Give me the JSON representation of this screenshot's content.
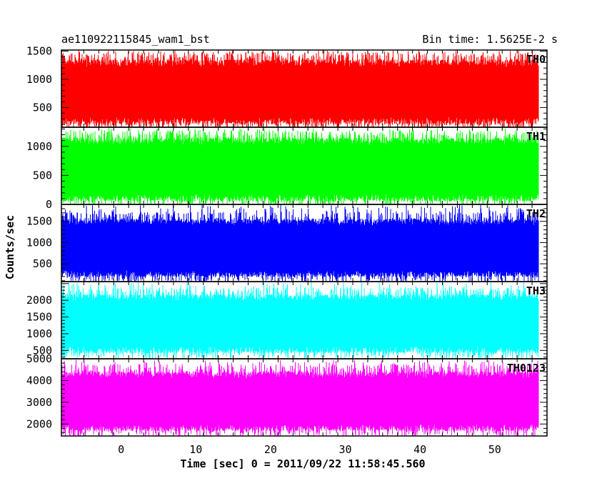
{
  "header": {
    "title": "ae110922115845_wam1_bst",
    "bin_time": "Bin time: 1.5625E-2 s"
  },
  "chart_data": {
    "type": "line",
    "title": "ae110922115845_wam1_bst",
    "subtitle": "Bin time: 1.5625E-2 s",
    "xlabel": "Time [sec] 0 = 2011/09/22 11:58:45.560",
    "ylabel": "Counts/sec",
    "xlim": [
      -8,
      57
    ],
    "x_range_of_data": [
      -7.9,
      55.9
    ],
    "xticks": [
      0,
      10,
      20,
      30,
      40,
      50
    ],
    "grid": false,
    "panels": [
      {
        "name": "TH0",
        "color": "#ff0000",
        "ylim": [
          150,
          1520
        ],
        "yticks": [
          500,
          1000,
          1500
        ],
        "typical_range": [
          250,
          1300
        ],
        "low_extreme": 160,
        "high_extreme": 1520,
        "mean": 720
      },
      {
        "name": "TH1",
        "color": "#00ff00",
        "ylim": [
          0,
          1330
        ],
        "yticks": [
          0,
          500,
          1000
        ],
        "typical_range": [
          100,
          1100
        ],
        "low_extreme": 30,
        "high_extreme": 1320,
        "mean": 640
      },
      {
        "name": "TH2",
        "color": "#0000ff",
        "ylim": [
          80,
          1900
        ],
        "yticks": [
          500,
          1000,
          1500
        ],
        "typical_range": [
          250,
          1500
        ],
        "low_extreme": 90,
        "high_extreme": 1900,
        "mean": 790
      },
      {
        "name": "TH3",
        "color": "#00ffff",
        "ylim": [
          250,
          2560
        ],
        "yticks": [
          500,
          1000,
          1500,
          2000
        ],
        "typical_range": [
          500,
          2100
        ],
        "low_extreme": 260,
        "high_extreme": 2560,
        "mean": 1270
      },
      {
        "name": "TH0123",
        "color": "#ff00ff",
        "ylim": [
          1450,
          5000
        ],
        "yticks": [
          2000,
          3000,
          4000,
          5000
        ],
        "typical_range": [
          1800,
          4300
        ],
        "low_extreme": 1500,
        "high_extreme": 4950,
        "mean": 3050
      }
    ]
  }
}
